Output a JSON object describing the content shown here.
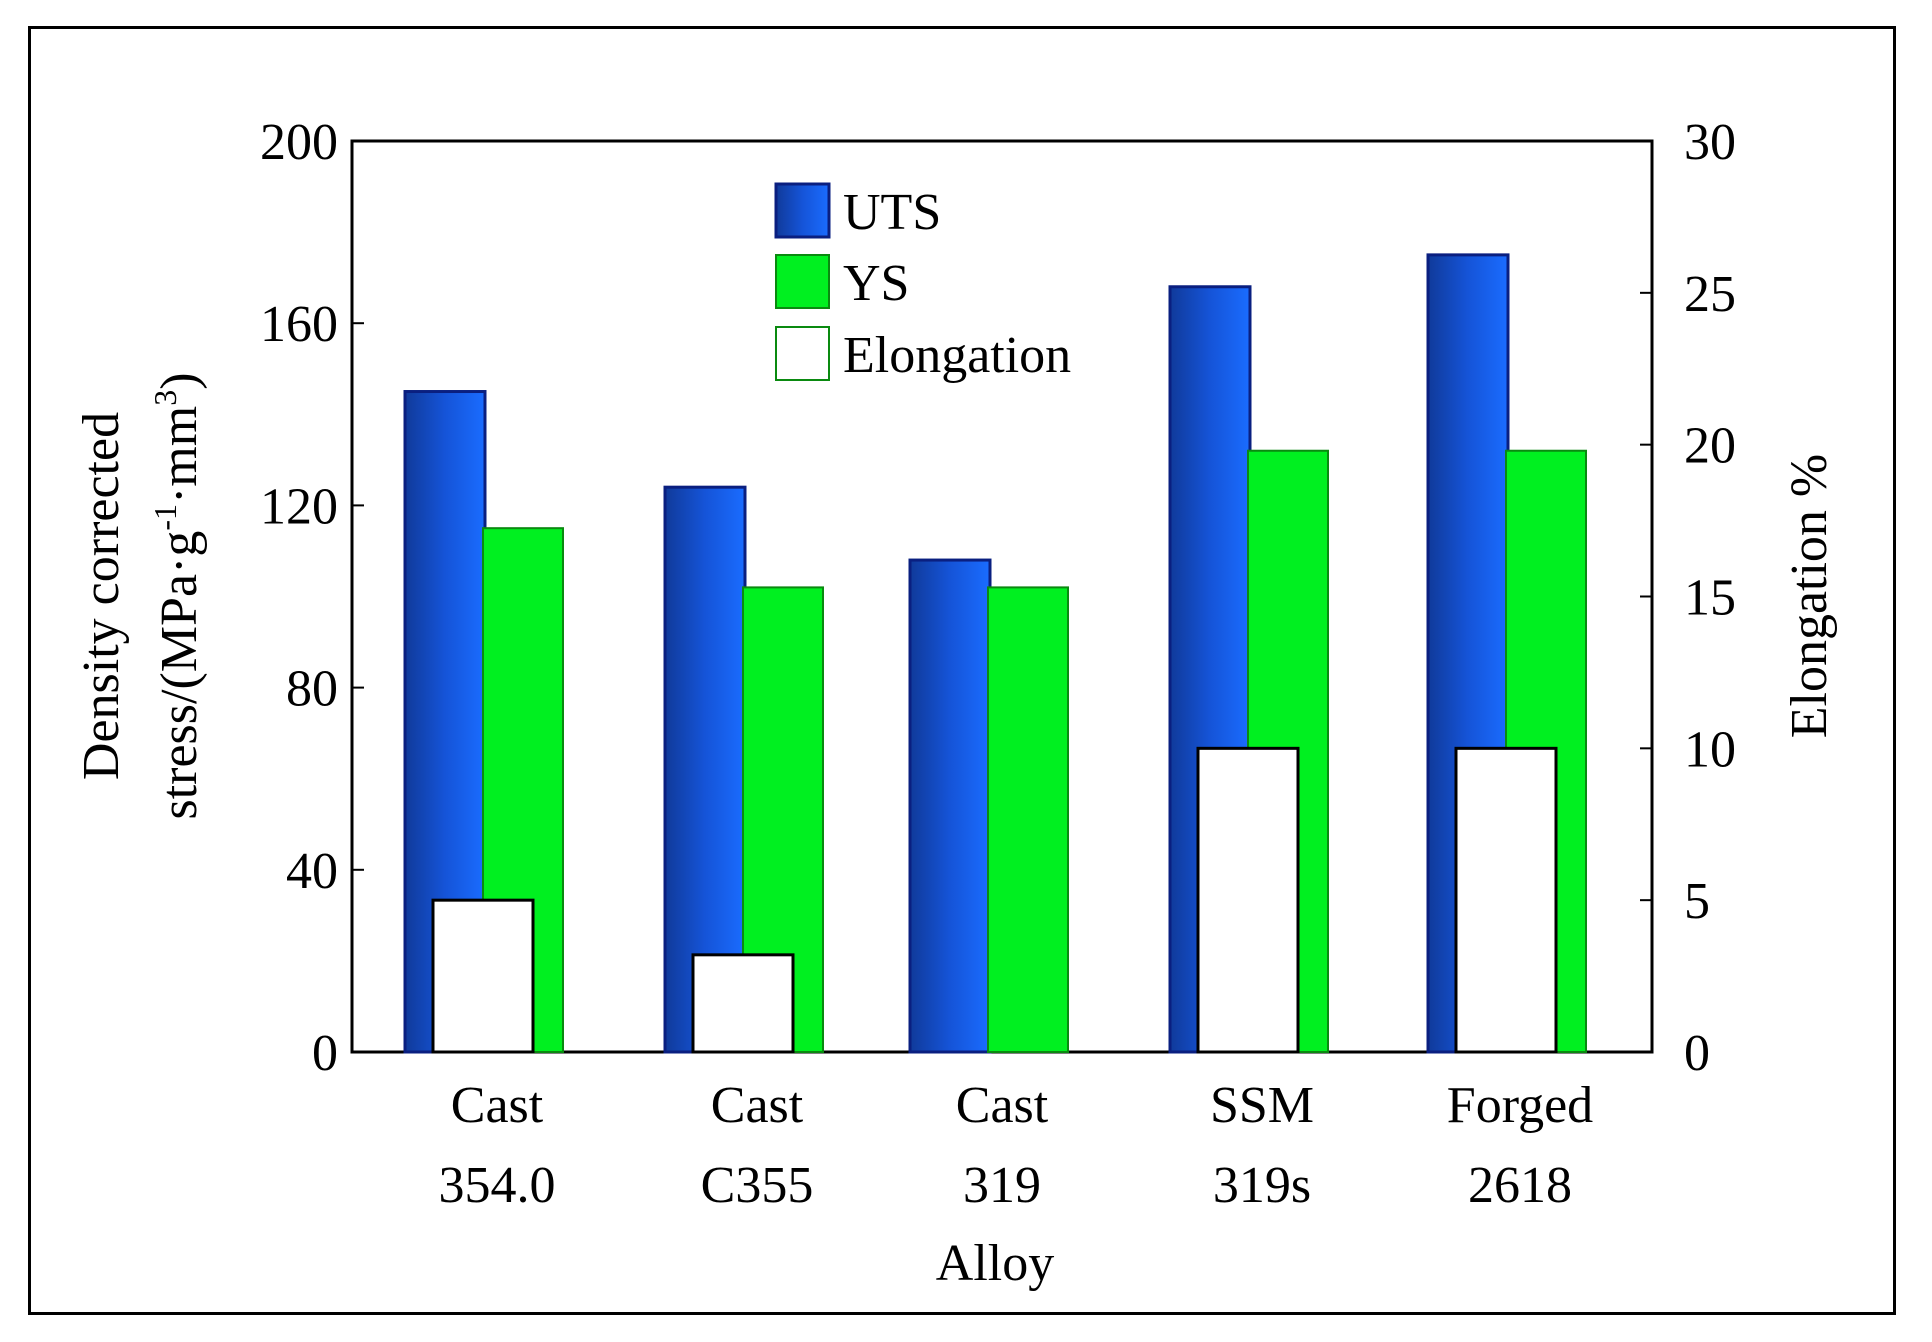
{
  "chart_data": {
    "type": "bar",
    "title": "",
    "categories": [
      {
        "line1": "Cast",
        "line2": "354.0"
      },
      {
        "line1": "Cast",
        "line2": "C355"
      },
      {
        "line1": "Cast",
        "line2": "319"
      },
      {
        "line1": "SSM",
        "line2": "319s"
      },
      {
        "line1": "Forged",
        "line2": "2618"
      }
    ],
    "series": [
      {
        "name": "UTS",
        "axis": "left",
        "color": "#1560e8",
        "values": [
          145,
          124,
          108,
          168,
          175
        ]
      },
      {
        "name": "YS",
        "axis": "left",
        "color": "#00f020",
        "values": [
          115,
          102,
          102,
          132,
          132
        ]
      },
      {
        "name": "Elongation",
        "axis": "right",
        "color": "#ffffff",
        "values": [
          5,
          3.2,
          0,
          10,
          10
        ]
      }
    ],
    "xlabel": "Alloy",
    "ylabel_left": {
      "line1": "Density corrected",
      "prefix": "stress/(MPa·g",
      "sup1": "-1",
      "middle": "·mm",
      "sup2": "3",
      "suffix": ")"
    },
    "ylabel_right": "Elongation %",
    "ylim_left": [
      0,
      200
    ],
    "ylim_right": [
      0,
      30
    ],
    "yticks_left": [
      "0",
      "40",
      "80",
      "120",
      "160",
      "200"
    ],
    "yticks_right": [
      "0",
      "5",
      "10",
      "15",
      "20",
      "25",
      "30"
    ],
    "legend_position": "top-center",
    "grid": false
  }
}
